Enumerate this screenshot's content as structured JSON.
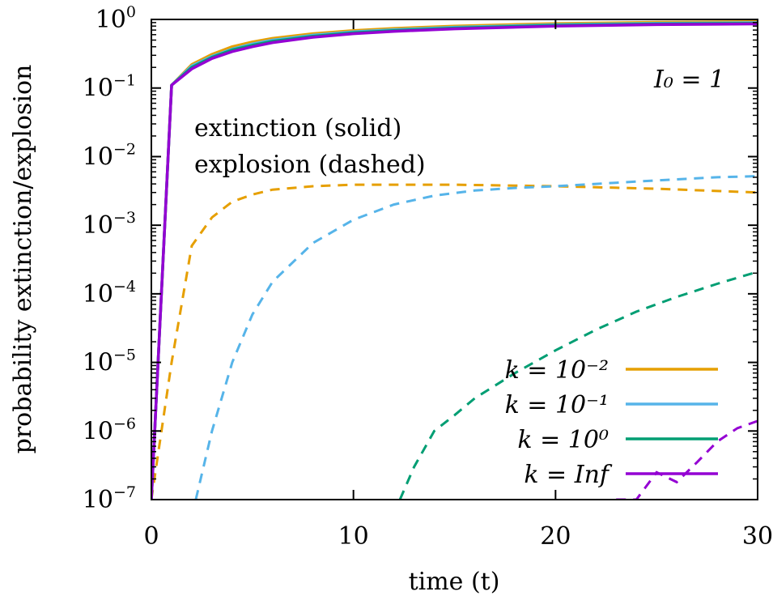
{
  "chart_data": {
    "type": "line",
    "xlabel": "time (t)",
    "ylabel": "probability extinction/explosion",
    "xlim": [
      0,
      30
    ],
    "ylim": [
      1e-07,
      1
    ],
    "yscale": "log",
    "xticks": [
      "0",
      "10",
      "20",
      "30"
    ],
    "yticks": [
      {
        "base": "10",
        "exp": "0"
      },
      {
        "base": "10",
        "exp": "−1"
      },
      {
        "base": "10",
        "exp": "−2"
      },
      {
        "base": "10",
        "exp": "−3"
      },
      {
        "base": "10",
        "exp": "−4"
      },
      {
        "base": "10",
        "exp": "−5"
      },
      {
        "base": "10",
        "exp": "−6"
      },
      {
        "base": "10",
        "exp": "−7"
      }
    ],
    "annotations": {
      "initial": "I₀ = 1",
      "line1": "extinction (solid)",
      "line2": "explosion (dashed)"
    },
    "grid": false,
    "legend_position": "bottom-right",
    "series": [
      {
        "name": "k = 10⁻²",
        "color": "#E69F00",
        "extinction": {
          "x": [
            0,
            1,
            2,
            3,
            4,
            5,
            6,
            8,
            10,
            12,
            15,
            20,
            25,
            30
          ],
          "y": [
            1e-07,
            0.11,
            0.22,
            0.31,
            0.4,
            0.47,
            0.53,
            0.62,
            0.69,
            0.74,
            0.8,
            0.87,
            0.91,
            0.93
          ]
        },
        "explosion": {
          "x": [
            0,
            1,
            2,
            3,
            4,
            5,
            6,
            8,
            10,
            12,
            15,
            20,
            25,
            30
          ],
          "y": [
            1e-07,
            1e-05,
            0.0005,
            0.0013,
            0.0022,
            0.0028,
            0.0033,
            0.0037,
            0.0039,
            0.0039,
            0.0039,
            0.0037,
            0.0034,
            0.003
          ]
        }
      },
      {
        "name": "k = 10⁻¹",
        "color": "#56B4E9",
        "extinction": {
          "x": [
            0,
            1,
            2,
            3,
            4,
            5,
            6,
            8,
            10,
            12,
            15,
            20,
            25,
            30
          ],
          "y": [
            1e-07,
            0.11,
            0.21,
            0.29,
            0.37,
            0.44,
            0.5,
            0.59,
            0.66,
            0.71,
            0.77,
            0.84,
            0.88,
            0.9
          ]
        },
        "explosion": {
          "x": [
            2.2,
            3,
            4,
            5,
            6,
            8,
            10,
            12,
            14,
            16,
            18,
            20,
            22,
            25,
            28,
            30
          ],
          "y": [
            1e-07,
            1e-06,
            1e-05,
            5e-05,
            0.00015,
            0.00055,
            0.0012,
            0.002,
            0.0027,
            0.0032,
            0.0035,
            0.0037,
            0.004,
            0.0045,
            0.005,
            0.0052
          ]
        }
      },
      {
        "name": "k = 10⁰",
        "color": "#009E73",
        "extinction": {
          "x": [
            0,
            1,
            2,
            3,
            4,
            5,
            6,
            8,
            10,
            12,
            15,
            20,
            25,
            30
          ],
          "y": [
            1e-07,
            0.11,
            0.2,
            0.28,
            0.36,
            0.42,
            0.48,
            0.57,
            0.64,
            0.69,
            0.75,
            0.82,
            0.86,
            0.88
          ]
        },
        "explosion": {
          "x": [
            12.3,
            13,
            14,
            15,
            16,
            18,
            20,
            22,
            24,
            26,
            28,
            30
          ],
          "y": [
            1e-07,
            3e-07,
            1e-06,
            1.7e-06,
            3e-06,
            7e-06,
            1.5e-05,
            3e-05,
            5.5e-05,
            9e-05,
            0.00014,
            0.00021
          ]
        }
      },
      {
        "name": "k = Inf",
        "color": "#9400D3",
        "extinction": {
          "x": [
            0,
            1,
            2,
            3,
            4,
            5,
            6,
            8,
            10,
            12,
            15,
            20,
            25,
            30
          ],
          "y": [
            1e-07,
            0.11,
            0.19,
            0.27,
            0.34,
            0.4,
            0.46,
            0.55,
            0.62,
            0.67,
            0.73,
            0.8,
            0.84,
            0.86
          ]
        },
        "explosion": {
          "x": [
            23,
            24,
            25,
            26,
            27,
            28,
            29,
            30
          ],
          "y": [
            1e-07,
            1e-07,
            2.5e-07,
            1.8e-07,
            3.5e-07,
            7e-07,
            1.1e-06,
            1.4e-06
          ]
        }
      }
    ]
  }
}
